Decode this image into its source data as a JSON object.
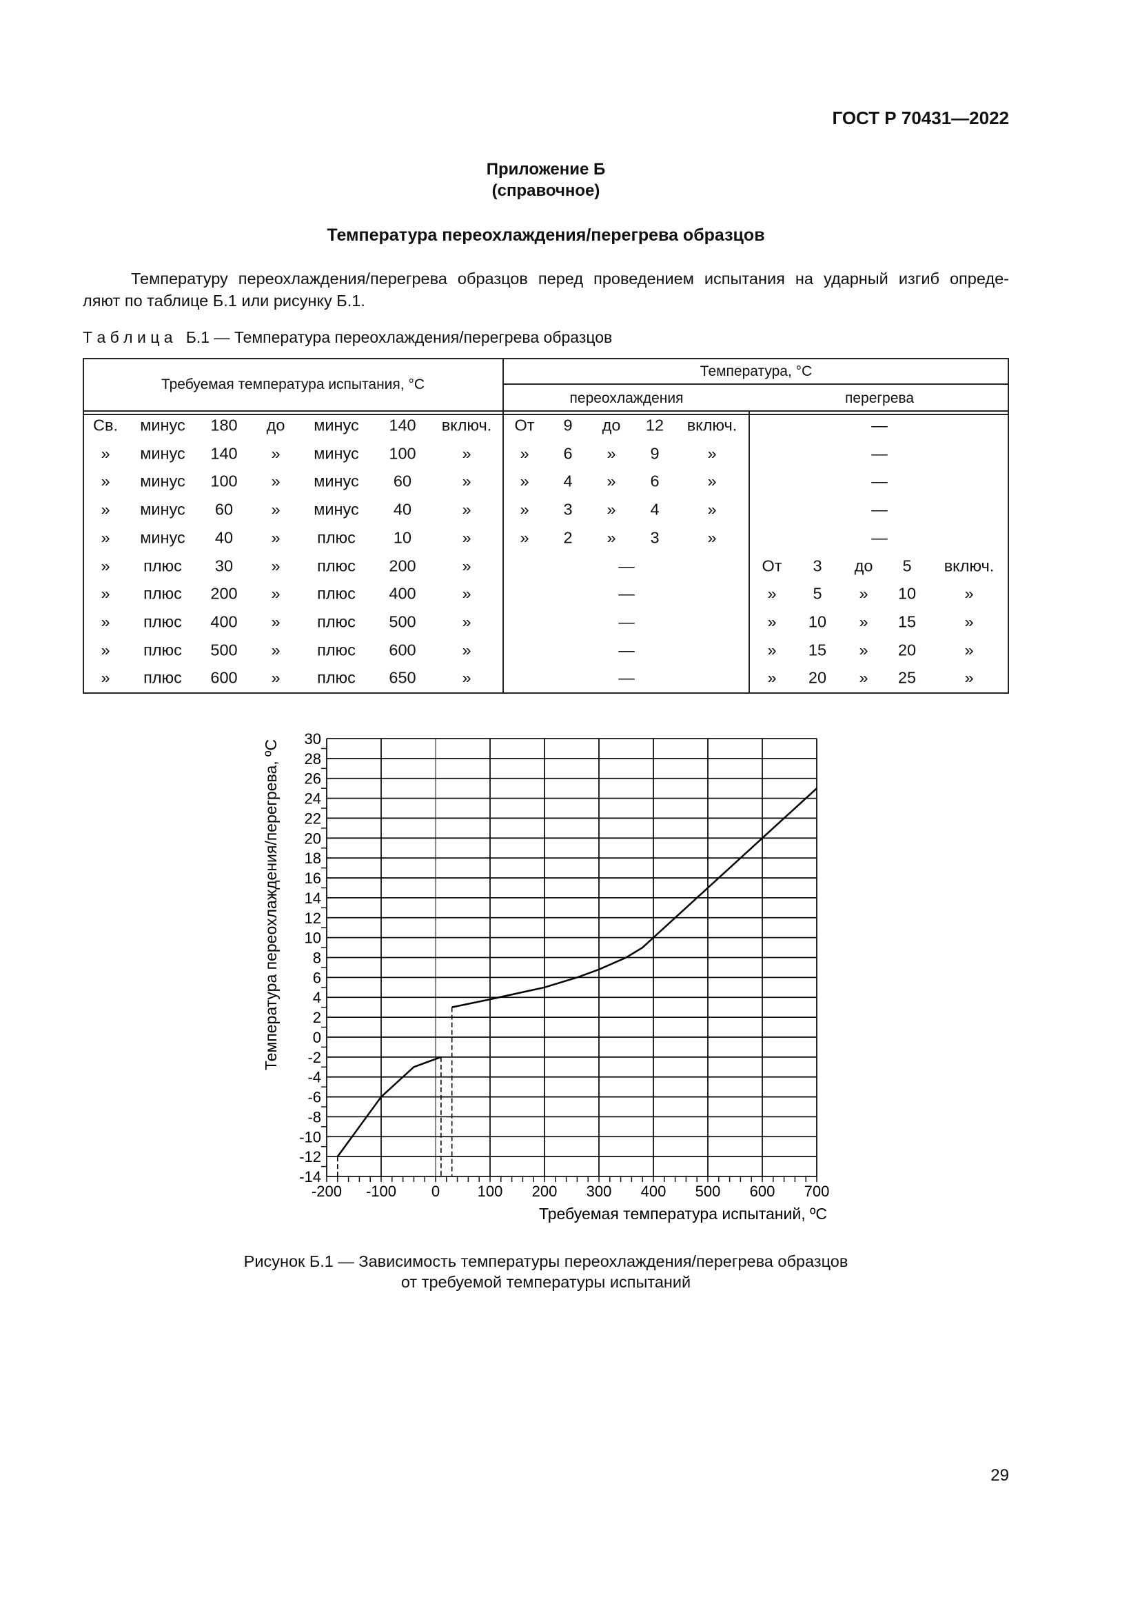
{
  "header": {
    "standard": "ГОСТ Р 70431—2022"
  },
  "annex": {
    "title": "Приложение Б",
    "subtitle": "(справочное)"
  },
  "section_title": "Температура переохлаждения/перегрева образцов",
  "paragraph": {
    "line1": "Температуру переохлаждения/перегрева образцов перед проведением испытания на ударный изгиб опреде-",
    "line2": "ляют по таблице Б.1 или рисунку Б.1."
  },
  "table": {
    "caption": "Т а б л и ц а   Б.1 — Температура переохлаждения/перегрева образцов",
    "headers": {
      "required": "Требуемая температура испытания, °С",
      "temperature": "Температура, °С",
      "subcool": "переохлаждения",
      "overheat": "перегрева"
    },
    "rows": [
      {
        "req": [
          "Св.",
          "минус",
          "180",
          "до",
          "минус",
          "140",
          "включ."
        ],
        "sub": [
          "От",
          "9",
          "до",
          "12",
          "включ."
        ],
        "over": "—"
      },
      {
        "req": [
          "»",
          "минус",
          "140",
          "»",
          "минус",
          "100",
          "»"
        ],
        "sub": [
          "»",
          "6",
          "»",
          "9",
          "»"
        ],
        "over": "—"
      },
      {
        "req": [
          "»",
          "минус",
          "100",
          "»",
          "минус",
          "60",
          "»"
        ],
        "sub": [
          "»",
          "4",
          "»",
          "6",
          "»"
        ],
        "over": "—"
      },
      {
        "req": [
          "»",
          "минус",
          "60",
          "»",
          "минус",
          "40",
          "»"
        ],
        "sub": [
          "»",
          "3",
          "»",
          "4",
          "»"
        ],
        "over": "—"
      },
      {
        "req": [
          "»",
          "минус",
          "40",
          "»",
          "плюс",
          "10",
          "»"
        ],
        "sub": [
          "»",
          "2",
          "»",
          "3",
          "»"
        ],
        "over": "—"
      },
      {
        "req": [
          "»",
          "плюс",
          "30",
          "»",
          "плюс",
          "200",
          "»"
        ],
        "sub": "—",
        "over": [
          "От",
          "3",
          "до",
          "5",
          "включ."
        ]
      },
      {
        "req": [
          "»",
          "плюс",
          "200",
          "»",
          "плюс",
          "400",
          "»"
        ],
        "sub": "—",
        "over": [
          "»",
          "5",
          "»",
          "10",
          "»"
        ]
      },
      {
        "req": [
          "»",
          "плюс",
          "400",
          "»",
          "плюс",
          "500",
          "»"
        ],
        "sub": "—",
        "over": [
          "»",
          "10",
          "»",
          "15",
          "»"
        ]
      },
      {
        "req": [
          "»",
          "плюс",
          "500",
          "»",
          "плюс",
          "600",
          "»"
        ],
        "sub": "—",
        "over": [
          "»",
          "15",
          "»",
          "20",
          "»"
        ]
      },
      {
        "req": [
          "»",
          "плюс",
          "600",
          "»",
          "плюс",
          "650",
          "»"
        ],
        "sub": "—",
        "over": [
          "»",
          "20",
          "»",
          "25",
          "»"
        ]
      }
    ]
  },
  "chart_data": {
    "type": "line",
    "xlabel": "Требуемая температура испытаний, ºC",
    "ylabel": "Температура переохлаждения/перегрева, ºC",
    "xlim": [
      -200,
      700
    ],
    "ylim": [
      -14,
      30
    ],
    "xticks": [
      -200,
      -100,
      0,
      100,
      200,
      300,
      400,
      500,
      600,
      700
    ],
    "yticks": [
      -14,
      -12,
      -10,
      -8,
      -6,
      -4,
      -2,
      0,
      2,
      4,
      6,
      8,
      10,
      12,
      14,
      16,
      18,
      20,
      22,
      24,
      26,
      28,
      30
    ],
    "grid": true,
    "series": [
      {
        "points": [
          [
            -180,
            -12
          ],
          [
            -100,
            -6
          ],
          [
            -40,
            -3
          ],
          [
            10,
            -2
          ]
        ]
      },
      {
        "points": [
          [
            30,
            3
          ],
          [
            100,
            3.8
          ],
          [
            200,
            5
          ],
          [
            260,
            6
          ],
          [
            300,
            6.8
          ],
          [
            350,
            8
          ],
          [
            380,
            9
          ],
          [
            400,
            10
          ],
          [
            450,
            12.5
          ],
          [
            500,
            15
          ],
          [
            600,
            20
          ],
          [
            700,
            25
          ]
        ]
      }
    ],
    "dashed_drops": [
      [
        -180,
        -12
      ],
      [
        10,
        -2
      ],
      [
        30,
        3
      ]
    ]
  },
  "figure_caption": {
    "line1": "Рисунок Б.1 — Зависимость температуры переохлаждения/перегрева образцов",
    "line2": "от требуемой температуры испытаний"
  },
  "page_number": "29"
}
